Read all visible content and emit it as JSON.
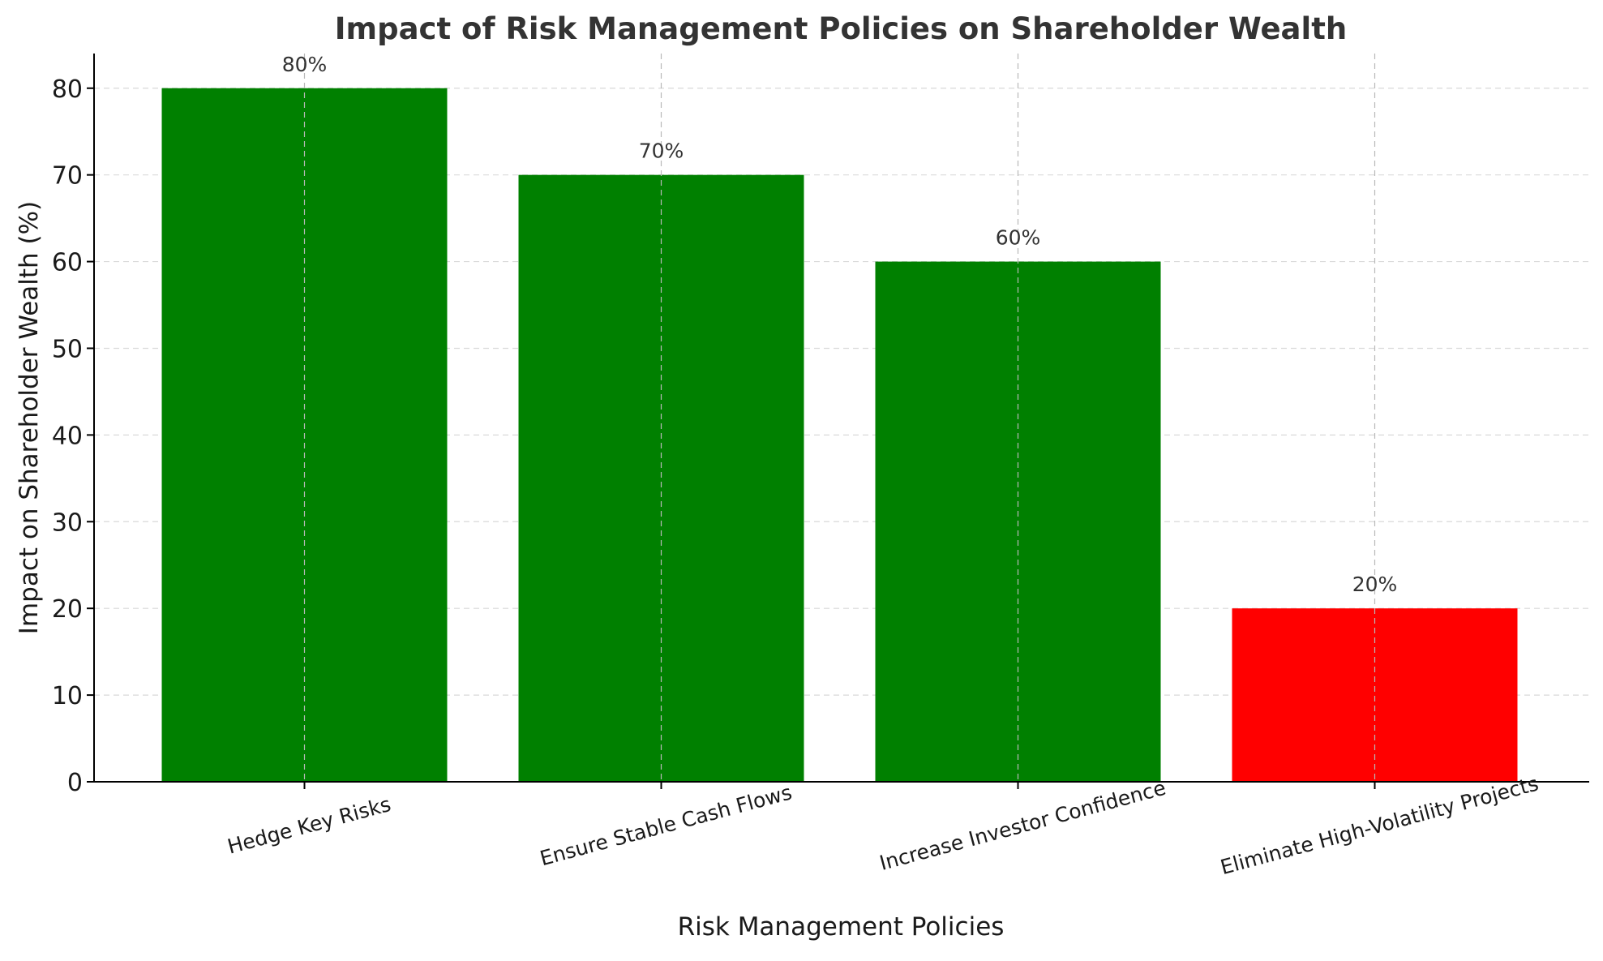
{
  "chart_data": {
    "type": "bar",
    "title": "Impact of Risk Management Policies on Shareholder Wealth",
    "xlabel": "Risk Management Policies",
    "ylabel": "Impact on Shareholder Wealth (%)",
    "categories": [
      "Hedge Key Risks",
      "Ensure Stable Cash Flows",
      "Increase Investor Confidence",
      "Eliminate High-Volatility Projects"
    ],
    "values": [
      80,
      70,
      60,
      20
    ],
    "value_labels": [
      "80%",
      "70%",
      "60%",
      "20%"
    ],
    "bar_colors": [
      "#008000",
      "#008000",
      "#008000",
      "#ff0000"
    ],
    "ylim": [
      0,
      84
    ],
    "yticks": [
      0,
      10,
      20,
      30,
      40,
      50,
      60,
      70,
      80
    ],
    "ytick_labels": [
      "0",
      "10",
      "20",
      "30",
      "40",
      "50",
      "60",
      "70",
      "80"
    ],
    "grid": true,
    "legend": "none"
  }
}
